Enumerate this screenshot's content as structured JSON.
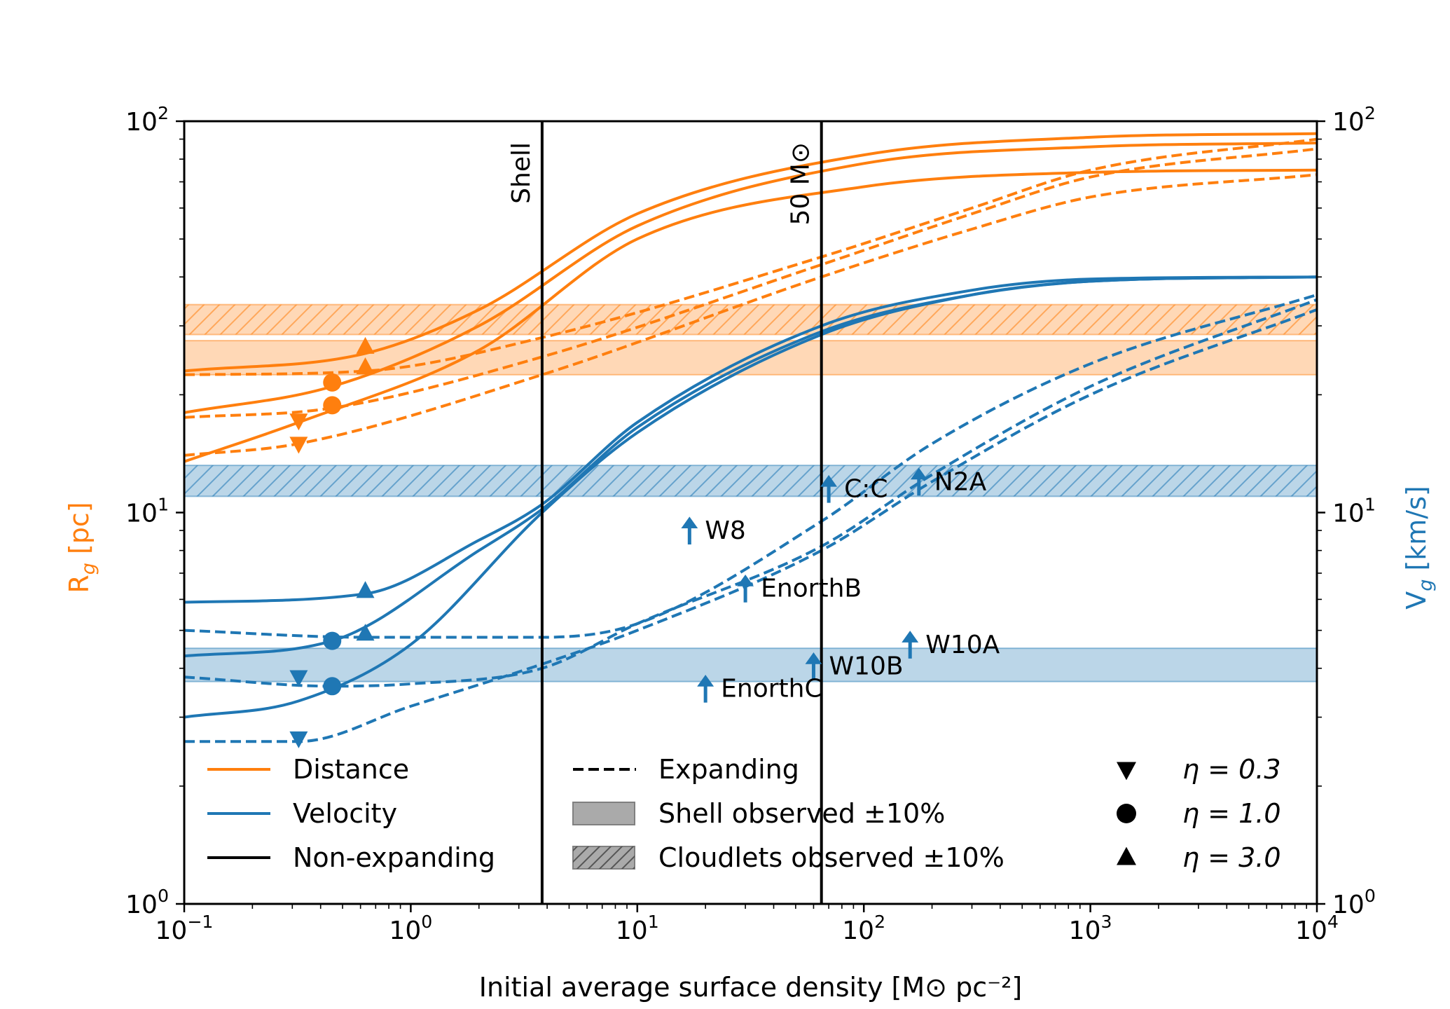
{
  "chart_data": {
    "type": "line",
    "x_scale": "log",
    "y_scale": "log",
    "xlim": [
      0.1,
      10000
    ],
    "ylim": [
      1,
      100
    ],
    "xlabel": "Initial average surface density [M⊙ pc⁻²]",
    "ylabel_left": "R",
    "ylabel_left_sub": "g",
    "ylabel_left_unit": " [pc]",
    "ylabel_right": "V",
    "ylabel_right_sub": "g",
    "ylabel_right_unit": " [km/s]",
    "x_ticks": [
      {
        "value": 0.1,
        "base": "10",
        "exp": "−1"
      },
      {
        "value": 1,
        "base": "10",
        "exp": "0"
      },
      {
        "value": 10,
        "base": "10",
        "exp": "1"
      },
      {
        "value": 100,
        "base": "10",
        "exp": "2"
      },
      {
        "value": 1000,
        "base": "10",
        "exp": "3"
      },
      {
        "value": 10000,
        "base": "10",
        "exp": "4"
      }
    ],
    "y_ticks": [
      {
        "value": 1,
        "base": "10",
        "exp": "0"
      },
      {
        "value": 10,
        "base": "10",
        "exp": "1"
      },
      {
        "value": 100,
        "base": "10",
        "exp": "2"
      }
    ],
    "colors": {
      "distance": "#ff7f0e",
      "velocity": "#1f77b4",
      "black": "#000000"
    },
    "vlines": [
      {
        "x": 3.8,
        "label": "Shell"
      },
      {
        "x": 65,
        "label": "50 M⊙"
      }
    ],
    "bands": [
      {
        "series": "distance",
        "kind": "shell",
        "y0": 22.5,
        "y1": 27.5
      },
      {
        "series": "distance",
        "kind": "cloudlets",
        "y0": 28.5,
        "y1": 34.0
      },
      {
        "series": "velocity",
        "kind": "shell",
        "y0": 3.7,
        "y1": 4.5
      },
      {
        "series": "velocity",
        "kind": "cloudlets",
        "y0": 11.0,
        "y1": 13.2
      }
    ],
    "series": [
      {
        "name": "Distance non-expanding η=3.0",
        "group": "distance",
        "style": "solid",
        "x": [
          0.1,
          0.63,
          2,
          10,
          100,
          1000,
          10000
        ],
        "y": [
          23.0,
          25.5,
          33,
          58,
          82,
          91,
          93
        ]
      },
      {
        "name": "Distance non-expanding η=1.0",
        "group": "distance",
        "style": "solid",
        "x": [
          0.1,
          0.45,
          2,
          10,
          100,
          1000,
          10000
        ],
        "y": [
          18.0,
          21.0,
          30,
          54,
          78,
          86,
          88
        ]
      },
      {
        "name": "Distance non-expanding η=0.3",
        "group": "distance",
        "style": "solid",
        "x": [
          0.1,
          0.32,
          2,
          10,
          100,
          1000,
          10000
        ],
        "y": [
          13.5,
          17.0,
          26,
          50,
          68,
          74,
          75
        ]
      },
      {
        "name": "Distance expanding η=3.0",
        "group": "distance",
        "style": "dashed",
        "x": [
          0.1,
          0.63,
          3.8,
          65,
          300,
          1000,
          10000
        ],
        "y": [
          22.5,
          23.0,
          28,
          45,
          60,
          75,
          90
        ]
      },
      {
        "name": "Distance expanding η=1.0",
        "group": "distance",
        "style": "dashed",
        "x": [
          0.1,
          0.45,
          3.8,
          65,
          300,
          1000,
          10000
        ],
        "y": [
          17.5,
          18.5,
          25,
          43,
          58,
          72,
          85
        ]
      },
      {
        "name": "Distance expanding η=0.3",
        "group": "distance",
        "style": "dashed",
        "x": [
          0.1,
          0.32,
          3.8,
          65,
          300,
          1000,
          10000
        ],
        "y": [
          14.0,
          15.0,
          22.5,
          40,
          53,
          64,
          73
        ]
      },
      {
        "name": "Velocity non-expanding η=3.0",
        "group": "velocity",
        "style": "solid",
        "x": [
          0.1,
          0.63,
          2,
          3.8,
          10,
          65,
          300,
          1000,
          10000
        ],
        "y": [
          5.9,
          6.2,
          8.5,
          10.5,
          17,
          30,
          37,
          39.5,
          40
        ]
      },
      {
        "name": "Velocity non-expanding η=1.0",
        "group": "velocity",
        "style": "solid",
        "x": [
          0.1,
          0.45,
          2,
          3.8,
          10,
          65,
          300,
          1000,
          10000
        ],
        "y": [
          4.3,
          4.7,
          8.0,
          10.2,
          16.5,
          29,
          36,
          39,
          40
        ]
      },
      {
        "name": "Velocity non-expanding η=0.3",
        "group": "velocity",
        "style": "solid",
        "x": [
          0.1,
          0.32,
          1,
          3.8,
          10,
          65,
          300,
          1000,
          10000
        ],
        "y": [
          3.0,
          3.3,
          4.6,
          10.0,
          16,
          28.5,
          36,
          39,
          40
        ]
      },
      {
        "name": "Velocity expanding η=3.0",
        "group": "velocity",
        "style": "dashed",
        "x": [
          0.1,
          0.63,
          3.8,
          10,
          65,
          200,
          1000,
          10000
        ],
        "y": [
          5.0,
          4.8,
          4.8,
          5.2,
          9.5,
          15,
          24,
          36
        ]
      },
      {
        "name": "Velocity expanding η=1.0",
        "group": "velocity",
        "style": "dashed",
        "x": [
          0.1,
          0.45,
          1,
          3.8,
          10,
          65,
          200,
          1000,
          10000
        ],
        "y": [
          3.8,
          3.6,
          3.65,
          4.0,
          5.2,
          8.2,
          12.5,
          21,
          35
        ]
      },
      {
        "name": "Velocity expanding η=0.3",
        "group": "velocity",
        "style": "dashed",
        "x": [
          0.1,
          0.32,
          1,
          3.8,
          10,
          65,
          200,
          1000,
          10000
        ],
        "y": [
          2.6,
          2.6,
          3.2,
          4.1,
          5.0,
          8.0,
          12,
          20,
          33
        ]
      }
    ],
    "markers": [
      {
        "group": "distance",
        "shape": "triangle-up",
        "x": 0.63,
        "y": 26.5
      },
      {
        "group": "distance",
        "shape": "triangle-up",
        "x": 0.63,
        "y": 23.5
      },
      {
        "group": "distance",
        "shape": "circle",
        "x": 0.45,
        "y": 21.5
      },
      {
        "group": "distance",
        "shape": "circle",
        "x": 0.45,
        "y": 18.8
      },
      {
        "group": "distance",
        "shape": "triangle-down",
        "x": 0.32,
        "y": 17.2
      },
      {
        "group": "distance",
        "shape": "triangle-down",
        "x": 0.32,
        "y": 15.0
      },
      {
        "group": "velocity",
        "shape": "triangle-up",
        "x": 0.63,
        "y": 6.3
      },
      {
        "group": "velocity",
        "shape": "triangle-up",
        "x": 0.63,
        "y": 4.9
      },
      {
        "group": "velocity",
        "shape": "circle",
        "x": 0.45,
        "y": 4.7
      },
      {
        "group": "velocity",
        "shape": "circle",
        "x": 0.45,
        "y": 3.6
      },
      {
        "group": "velocity",
        "shape": "triangle-down",
        "x": 0.32,
        "y": 3.8
      },
      {
        "group": "velocity",
        "shape": "triangle-down",
        "x": 0.32,
        "y": 2.65
      }
    ],
    "annotations": [
      {
        "label": "W8",
        "x": 17,
        "y": 9.0
      },
      {
        "label": "C:C",
        "x": 70,
        "y": 11.5
      },
      {
        "label": "N2A",
        "x": 175,
        "y": 12.0
      },
      {
        "label": "EnorthB",
        "x": 30,
        "y": 6.4
      },
      {
        "label": "W10A",
        "x": 160,
        "y": 4.6
      },
      {
        "label": "W10B",
        "x": 60,
        "y": 4.05
      },
      {
        "label": "EnorthC",
        "x": 20,
        "y": 3.55
      }
    ],
    "legend": {
      "col1": [
        {
          "label": "Distance",
          "kind": "line",
          "color": "#ff7f0e"
        },
        {
          "label": "Velocity",
          "kind": "line",
          "color": "#1f77b4"
        },
        {
          "label": "Non-expanding",
          "kind": "line",
          "color": "#000000"
        }
      ],
      "col2": [
        {
          "label": "Expanding",
          "kind": "dashed"
        },
        {
          "label": "Shell observed ±10%",
          "kind": "patch"
        },
        {
          "label": "Cloudlets observed ±10%",
          "kind": "hatch"
        }
      ],
      "col3": [
        {
          "label": "η = 0.3",
          "shape": "triangle-down"
        },
        {
          "label": "η = 1.0",
          "shape": "circle"
        },
        {
          "label": "η = 3.0",
          "shape": "triangle-up"
        }
      ]
    }
  }
}
